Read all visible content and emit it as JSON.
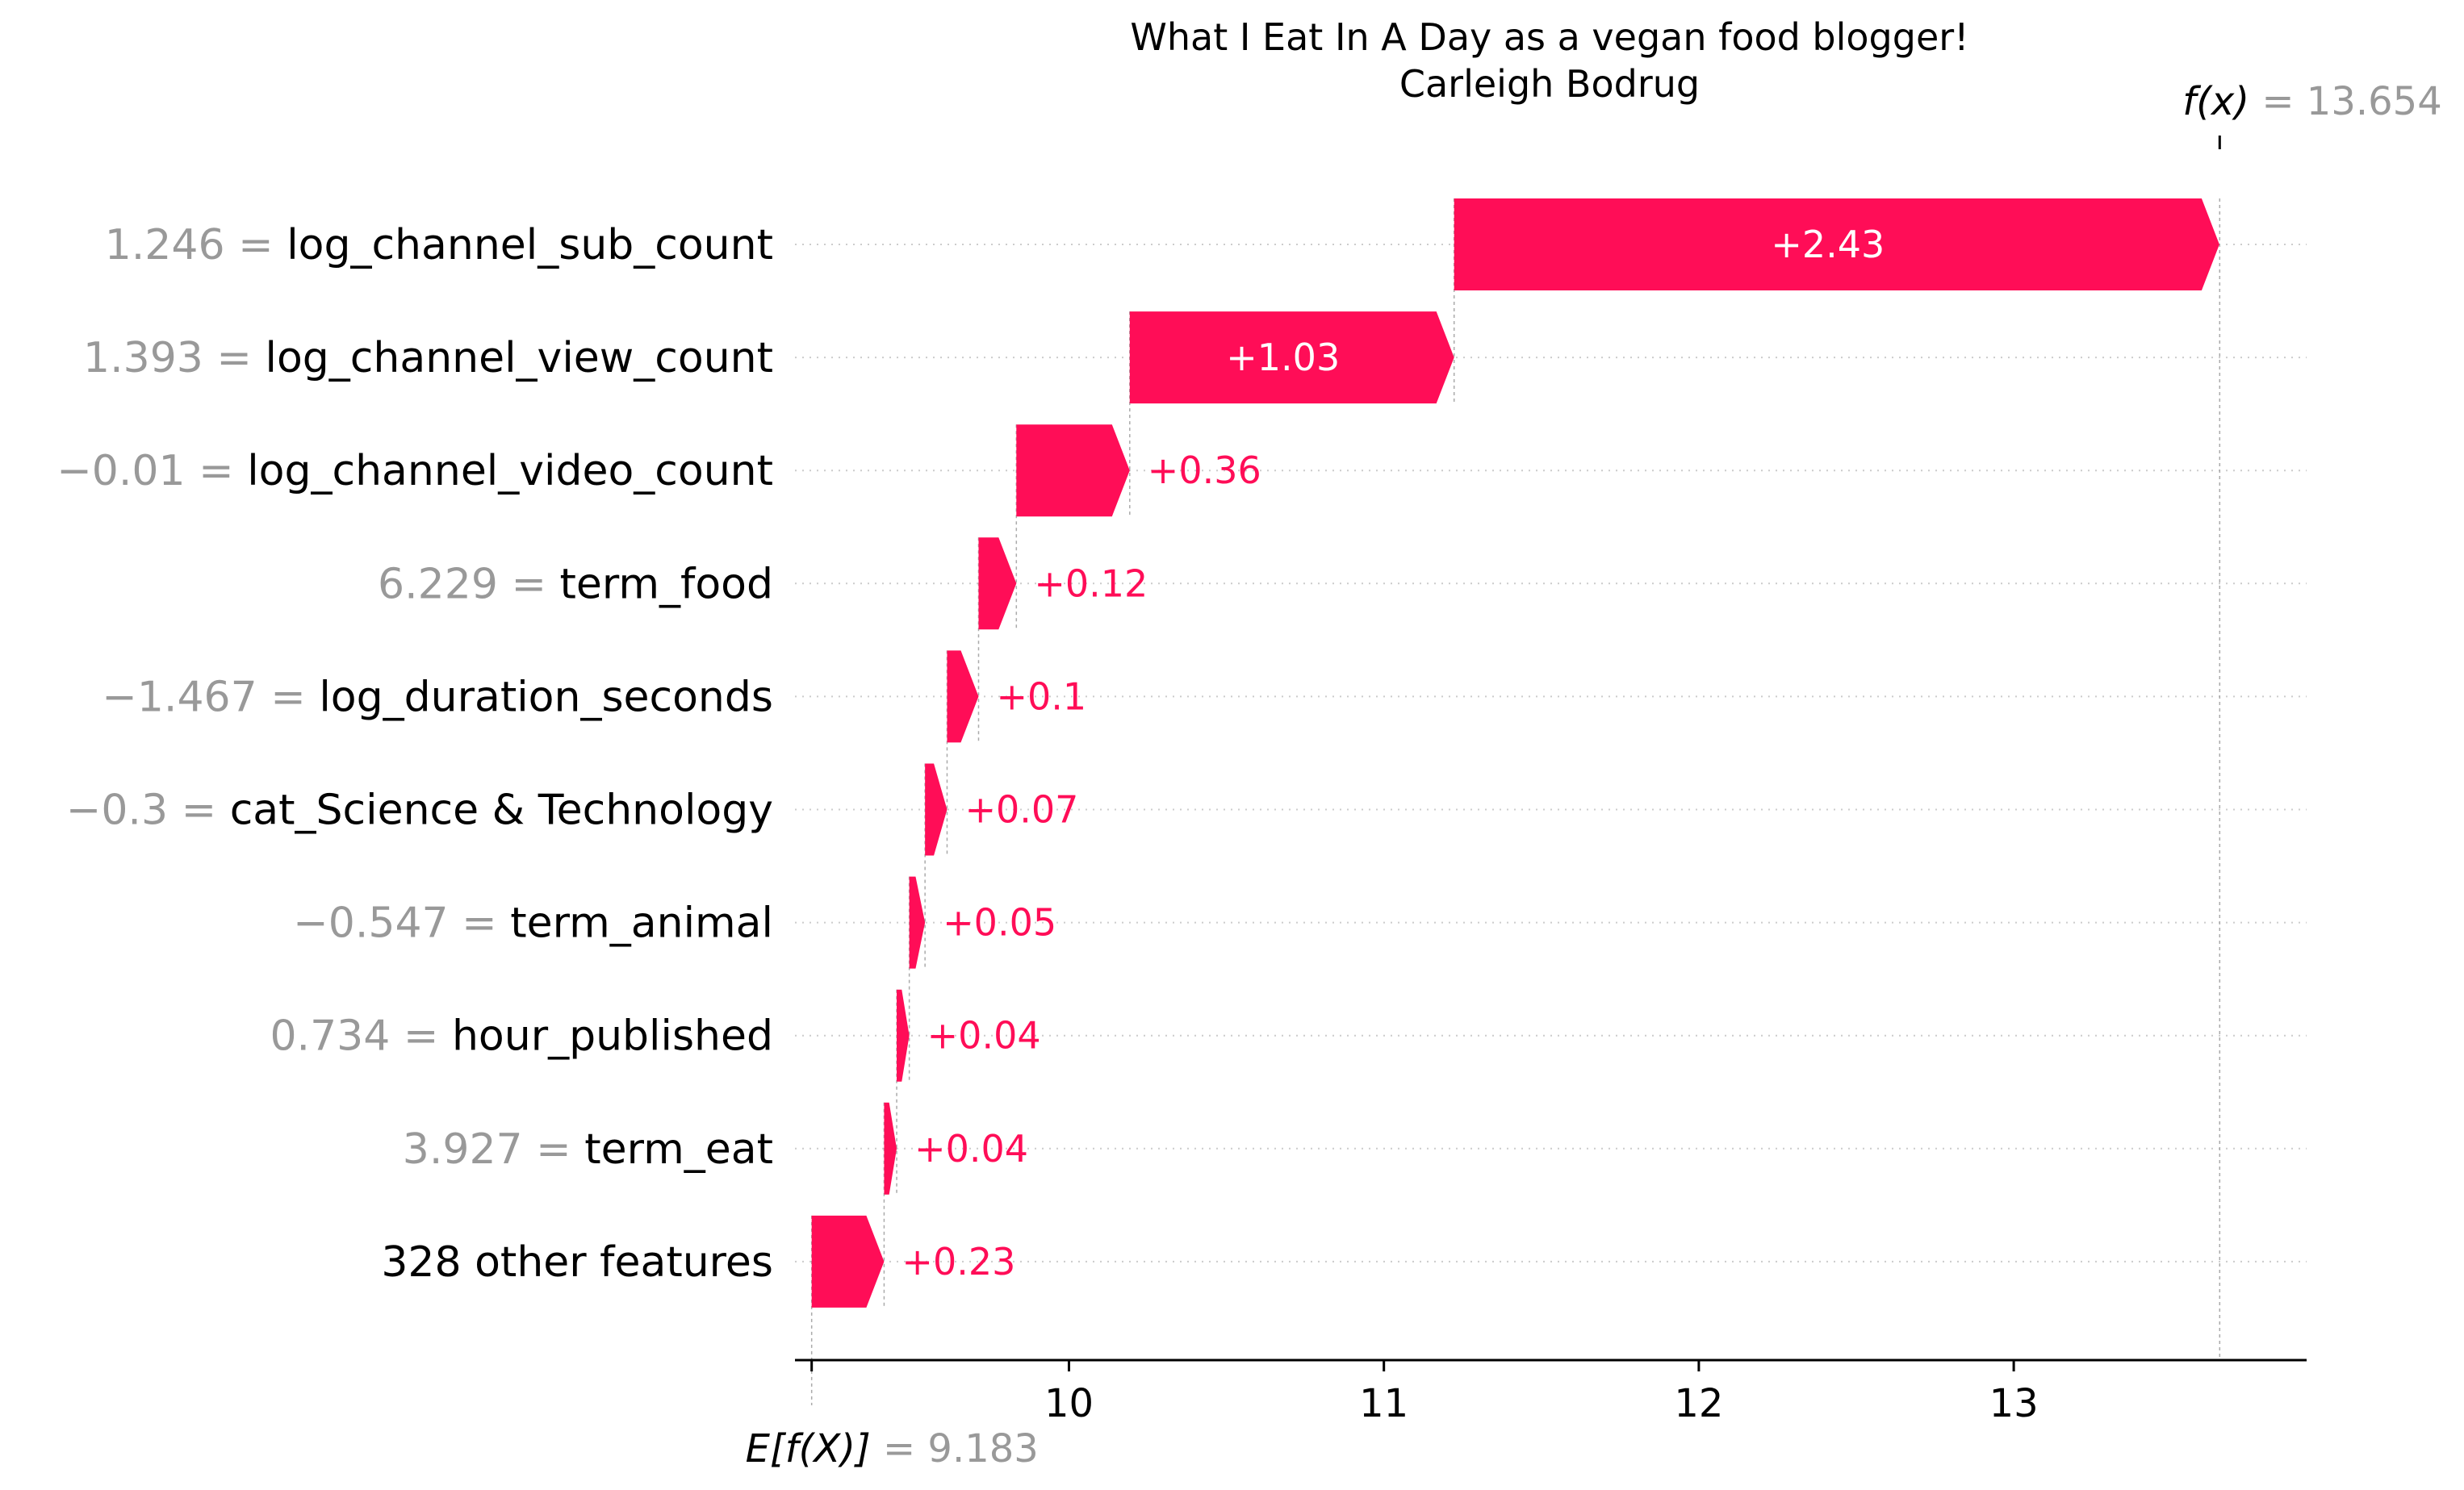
{
  "chart_data": {
    "type": "waterfall",
    "title": "What I Eat In A Day as a vegan food blogger!",
    "subtitle": "Carleigh Bodrug",
    "base_value": 9.183,
    "base_label": "E[f(X)]",
    "base_value_text": "= 9.183",
    "output_value": 13.654,
    "output_label": "f(x)",
    "output_value_text": "= 13.654",
    "xlim": [
      9.13,
      13.93
    ],
    "xticks": [
      10,
      11,
      12,
      13
    ],
    "xtick_labels": [
      "10",
      "11",
      "12",
      "13"
    ],
    "positive_color": "#ff0d57",
    "negative_color": "#1e88e5",
    "features": [
      {
        "value_text": "1.246 =",
        "name": "log_channel_sub_count",
        "contribution": 2.43,
        "label": "+2.43"
      },
      {
        "value_text": "1.393 =",
        "name": "log_channel_view_count",
        "contribution": 1.03,
        "label": "+1.03"
      },
      {
        "value_text": "−0.01 =",
        "name": "log_channel_video_count",
        "contribution": 0.36,
        "label": "+0.36"
      },
      {
        "value_text": "6.229 =",
        "name": "term_food",
        "contribution": 0.12,
        "label": "+0.12"
      },
      {
        "value_text": "−1.467 =",
        "name": "log_duration_seconds",
        "contribution": 0.1,
        "label": "+0.1"
      },
      {
        "value_text": "−0.3 =",
        "name": "cat_Science & Technology",
        "contribution": 0.07,
        "label": "+0.07"
      },
      {
        "value_text": "−0.547 =",
        "name": "term_animal",
        "contribution": 0.05,
        "label": "+0.05"
      },
      {
        "value_text": "0.734 =",
        "name": "hour_published",
        "contribution": 0.04,
        "label": "+0.04"
      },
      {
        "value_text": "3.927 =",
        "name": "term_eat",
        "contribution": 0.04,
        "label": "+0.04"
      },
      {
        "value_text": "",
        "name": "328 other features",
        "contribution": 0.23,
        "label": "+0.23"
      }
    ]
  }
}
